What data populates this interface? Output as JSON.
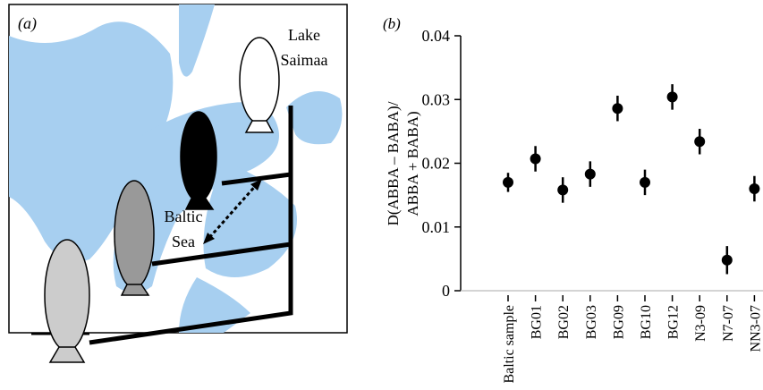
{
  "panel_a": {
    "label": "(a)",
    "annotations": [
      "Lake",
      "Saimaa",
      "Baltic",
      "Sea"
    ]
  },
  "chart_data": {
    "type": "scatter",
    "panel_label": "(b)",
    "ylabel_lines": [
      "D(ABBA – BABA)/",
      "ABBA + BABA)"
    ],
    "categories": [
      "Baltic sample",
      "BG01",
      "BG02",
      "BG03",
      "BG09",
      "BG10",
      "BG12",
      "N3-09",
      "N7-07",
      "NN3-07"
    ],
    "values": [
      0.017,
      0.0207,
      0.0158,
      0.0183,
      0.0286,
      0.017,
      0.0304,
      0.0234,
      0.0048,
      0.016
    ],
    "errors": [
      0.0015,
      0.002,
      0.002,
      0.002,
      0.002,
      0.002,
      0.002,
      0.002,
      0.0022,
      0.002
    ],
    "color": "#000000",
    "ylim": [
      0,
      0.04
    ],
    "yticks": [
      0,
      0.01,
      0.02,
      0.03,
      0.04
    ]
  }
}
